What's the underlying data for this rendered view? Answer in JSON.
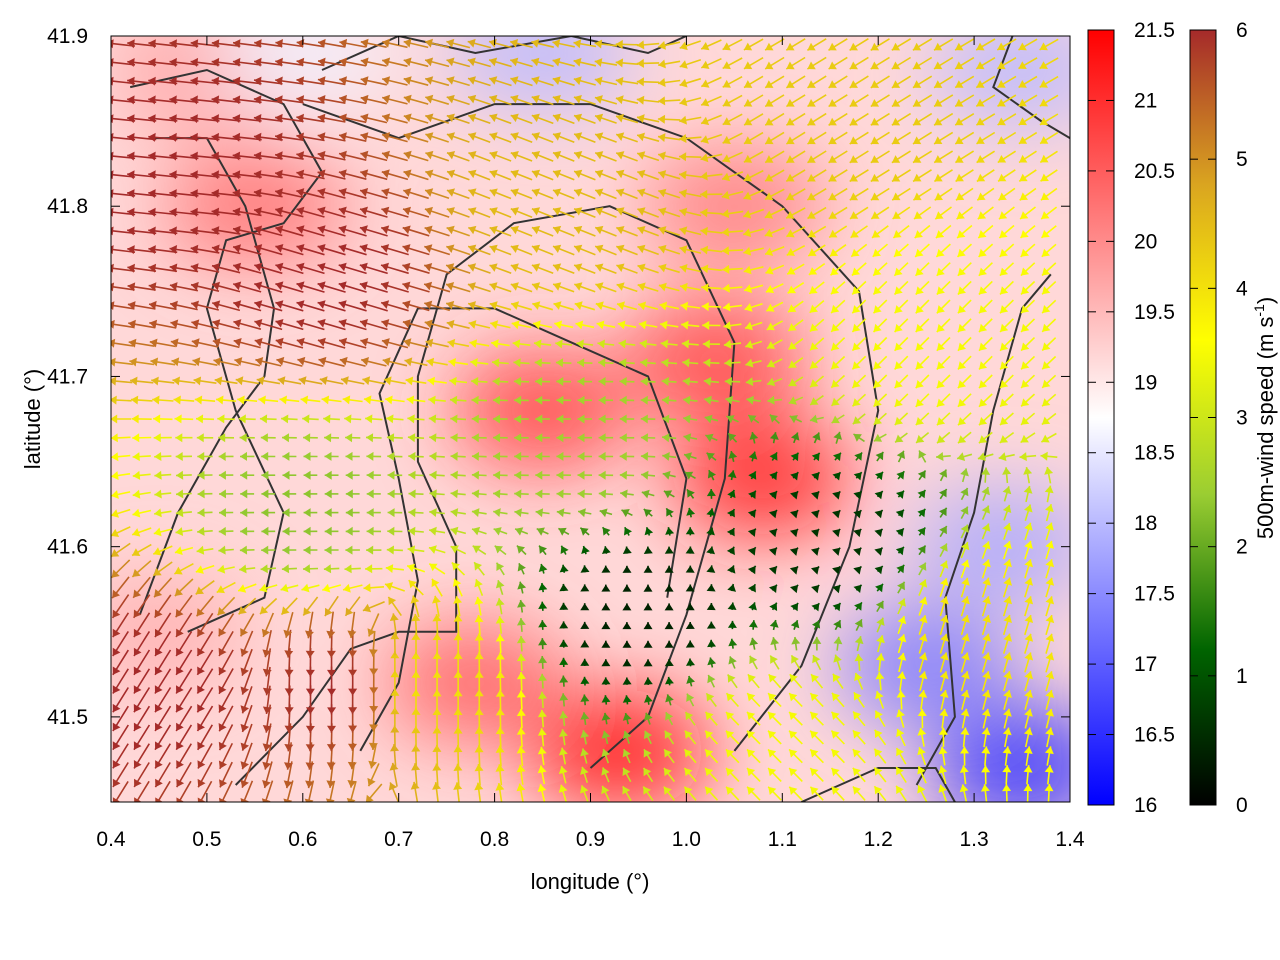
{
  "chart_data": {
    "type": "heatmap",
    "title": "",
    "xlabel": "longitude (°)",
    "ylabel": "latitude (°)",
    "xlim": [
      0.4,
      1.4
    ],
    "ylim": [
      41.45,
      41.9
    ],
    "x_ticks": [
      0.4,
      0.5,
      0.6,
      0.7,
      0.8,
      0.9,
      1.0,
      1.1,
      1.2,
      1.3,
      1.4
    ],
    "x_tick_labels": [
      "0.4",
      "0.5",
      "0.6",
      "0.7",
      "0.8",
      "0.9",
      "1.0",
      "1.1",
      "1.2",
      "1.3",
      "1.4"
    ],
    "y_ticks": [
      41.5,
      41.6,
      41.7,
      41.8,
      41.9
    ],
    "y_tick_labels": [
      "41.5",
      "41.6",
      "41.7",
      "41.8",
      "41.9"
    ],
    "grid": false,
    "temperature_colorbar": {
      "range": [
        16,
        21.5
      ],
      "ticks": [
        16,
        16.5,
        17,
        17.5,
        18,
        18.5,
        19,
        19.5,
        20,
        20.5,
        21,
        21.5
      ],
      "tick_labels": [
        "16",
        "16.5",
        "17",
        "17.5",
        "18",
        "18.5",
        "19",
        "19.5",
        "20",
        "20.5",
        "21",
        "21.5"
      ],
      "colors": [
        "#0000ff",
        "#ffffff",
        "#ff0000"
      ]
    },
    "wind_colorbar": {
      "label": "500m-wind speed (m s-1)",
      "label_main": "500m-wind speed (m s",
      "label_sup": "-1",
      "label_end": ")",
      "range": [
        0,
        6
      ],
      "ticks": [
        0,
        1,
        2,
        3,
        4,
        5,
        6
      ],
      "tick_labels": [
        "0",
        "1",
        "2",
        "3",
        "4",
        "5",
        "6"
      ],
      "colors": [
        "#000000",
        "#006400",
        "#9acd32",
        "#ffff00",
        "#daa520",
        "#a52a2a"
      ]
    },
    "contour_color": "#333333",
    "temperature_hotspots": [
      {
        "lon": 0.93,
        "lat": 41.48,
        "value": 21.3
      },
      {
        "lon": 1.08,
        "lat": 41.64,
        "value": 21.2
      },
      {
        "lon": 0.85,
        "lat": 41.68,
        "value": 20.8
      },
      {
        "lon": 1.03,
        "lat": 41.71,
        "value": 20.8
      },
      {
        "lon": 0.55,
        "lat": 41.8,
        "value": 20.3
      },
      {
        "lon": 1.05,
        "lat": 41.8,
        "value": 20.2
      },
      {
        "lon": 0.78,
        "lat": 41.52,
        "value": 20.5
      },
      {
        "lon": 0.45,
        "lat": 41.55,
        "value": 19.6
      },
      {
        "lon": 0.5,
        "lat": 41.88,
        "value": 19.8
      },
      {
        "lon": 1.25,
        "lat": 41.53,
        "value": 17.3
      },
      {
        "lon": 1.35,
        "lat": 41.47,
        "value": 16.5
      },
      {
        "lon": 1.33,
        "lat": 41.6,
        "value": 17.8
      },
      {
        "lon": 0.85,
        "lat": 41.89,
        "value": 18.0
      },
      {
        "lon": 1.35,
        "lat": 41.88,
        "value": 18.0
      },
      {
        "lon": 0.6,
        "lat": 41.89,
        "value": 18.6
      }
    ],
    "wind_regions": [
      {
        "lon": 0.47,
        "lat": 41.82,
        "speed": 6.0,
        "u": -1.0,
        "v": 0.1
      },
      {
        "lon": 0.62,
        "lat": 41.76,
        "speed": 6.0,
        "u": -1.0,
        "v": 0.3
      },
      {
        "lon": 0.45,
        "lat": 41.52,
        "speed": 6.0,
        "u": -0.5,
        "v": -0.8
      },
      {
        "lon": 0.64,
        "lat": 41.52,
        "speed": 6.0,
        "u": 0.0,
        "v": -1.0
      },
      {
        "lon": 0.72,
        "lat": 41.52,
        "speed": 4.0,
        "u": 0.0,
        "v": 1.0
      },
      {
        "lon": 0.88,
        "lat": 41.8,
        "speed": 4.5,
        "u": -1.0,
        "v": 0.4
      },
      {
        "lon": 1.15,
        "lat": 41.85,
        "speed": 4.3,
        "u": -0.8,
        "v": -0.5
      },
      {
        "lon": 1.25,
        "lat": 41.72,
        "speed": 3.5,
        "u": -0.7,
        "v": -0.7
      },
      {
        "lon": 0.88,
        "lat": 41.66,
        "speed": 2.5,
        "u": -1.0,
        "v": 0.0
      },
      {
        "lon": 0.95,
        "lat": 41.56,
        "speed": 0.4,
        "u": 0.0,
        "v": 1.0
      },
      {
        "lon": 1.15,
        "lat": 41.6,
        "speed": 0.6,
        "u": 0.7,
        "v": 0.7
      },
      {
        "lon": 0.6,
        "lat": 41.62,
        "speed": 2.3,
        "u": -1.0,
        "v": 0.0
      },
      {
        "lon": 1.3,
        "lat": 41.55,
        "speed": 4.0,
        "u": 0.3,
        "v": 1.0
      },
      {
        "lon": 1.1,
        "lat": 41.49,
        "speed": 3.5,
        "u": -0.7,
        "v": 0.7
      }
    ]
  }
}
